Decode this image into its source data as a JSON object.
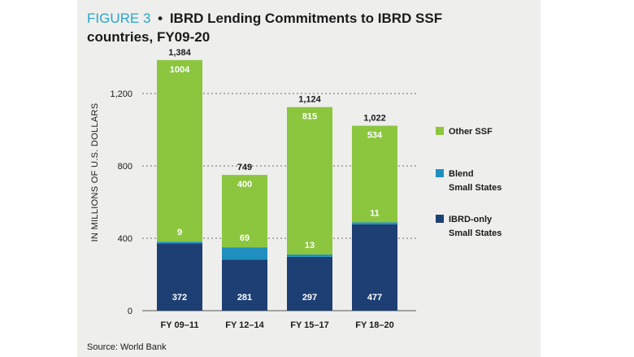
{
  "figure": {
    "label": "FIGURE 3",
    "bullet": "•",
    "title": "IBRD Lending Commitments to IBRD SSF countries, FY09-20",
    "source": "Source: World Bank"
  },
  "colors": {
    "ibrd_only": "#1d3f73",
    "blend": "#1f8fbf",
    "other_ssf": "#8cc63f",
    "panel": "#eeeeec",
    "gridline": "#888888"
  },
  "chart_data": {
    "type": "bar",
    "stacked": true,
    "categories": [
      "FY 09–11",
      "FY 12–14",
      "FY 15–17",
      "FY 18–20"
    ],
    "series": [
      {
        "name": "IBRD-only Small States",
        "values": [
          372,
          281,
          297,
          477
        ]
      },
      {
        "name": "Blend Small States",
        "values": [
          9,
          69,
          13,
          11
        ]
      },
      {
        "name": "Other SSF",
        "values": [
          1004,
          400,
          815,
          534
        ]
      }
    ],
    "totals": [
      "1,384",
      "749",
      "1,124",
      "1,022"
    ],
    "ylabel": "IN MILLIONS OF U.S. DOLLARS",
    "ylim": [
      0,
      1400
    ],
    "yticks": [
      0,
      400,
      800,
      1200
    ],
    "ytick_labels": [
      "0",
      "400",
      "800",
      "1,200"
    ],
    "grid": "dotted horizontal lines at y ticks",
    "legend_position": "right"
  }
}
